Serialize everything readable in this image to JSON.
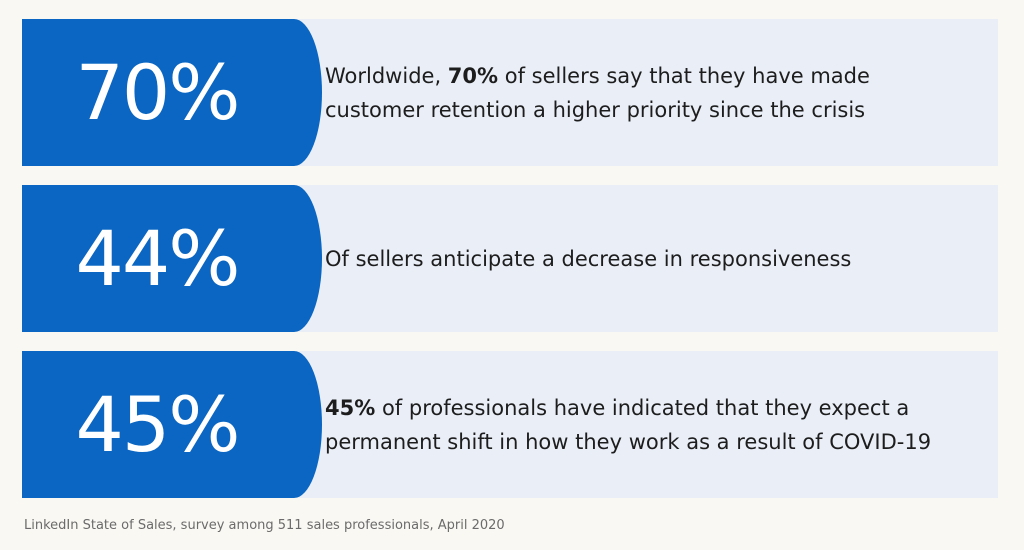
{
  "stats": [
    {
      "value": "70%",
      "pre": "Worldwide, ",
      "bold": "70%",
      "post": " of sellers say that they have made customer retention a higher priority since the crisis"
    },
    {
      "value": "44%",
      "pre": "Of sellers anticipate a decrease in responsiveness",
      "bold": "",
      "post": ""
    },
    {
      "value": "45%",
      "pre": "",
      "bold": "45%",
      "post": " of professionals have indicated that they expect a permanent shift in how they work as a result of COVID-19"
    }
  ],
  "footnote": "LinkedIn State of Sales, survey among 511 sales professionals, April 2020",
  "colors": {
    "accent": "#0a66c2",
    "card_background": "#e9eef7",
    "page_background": "#faf8f3"
  }
}
